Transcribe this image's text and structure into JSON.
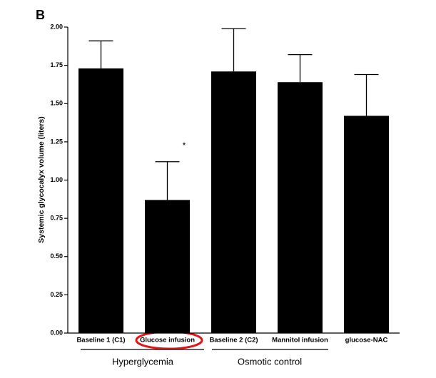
{
  "panel_label": "B",
  "chart_data": {
    "type": "bar",
    "y_label": "Systemic glycocalyx volume (liters)",
    "categories": [
      "Baseline 1 (C1)",
      "Glucose infusion",
      "Baseline 2 (C2)",
      "Mannitol infusion",
      "glucose-NAC"
    ],
    "values": [
      1.73,
      0.87,
      1.71,
      1.64,
      1.42
    ],
    "errors": [
      0.18,
      0.25,
      0.28,
      0.18,
      0.27
    ],
    "color": "#000000",
    "ylim": [
      0,
      2
    ],
    "yticks": [
      {
        "value": 0,
        "label": "0.00"
      },
      {
        "value": 0.25,
        "label": "0.25"
      },
      {
        "value": 0.5,
        "label": "0.50"
      },
      {
        "value": 0.75,
        "label": "0.75"
      },
      {
        "value": 1,
        "label": "1.00"
      },
      {
        "value": 1.25,
        "label": "1.25"
      },
      {
        "value": 1.5,
        "label": "1.50"
      },
      {
        "value": 1.75,
        "label": "1.75"
      },
      {
        "value": 2,
        "label": "2.00"
      }
    ],
    "annotation": "*",
    "groups": [
      "Hyperglycemia",
      "Osmotic control"
    ]
  }
}
